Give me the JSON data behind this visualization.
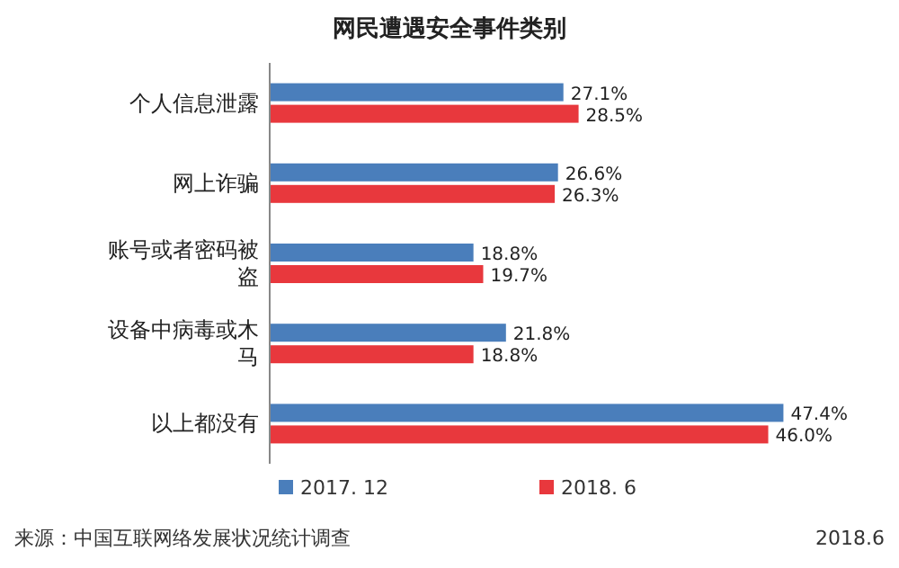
{
  "chart_data": {
    "type": "bar",
    "orientation": "horizontal",
    "title": "网民遭遇安全事件类别",
    "categories": [
      "个人信息泄露",
      "网上诈骗",
      "账号或者密码被盗",
      "设备中病毒或木马",
      "以上都没有"
    ],
    "series": [
      {
        "name": "2017. 12",
        "color": "#4a7ebb",
        "values": [
          27.1,
          26.6,
          18.8,
          21.8,
          47.4
        ],
        "value_labels": [
          "27.1%",
          "26.6%",
          "18.8%",
          "21.8%",
          "47.4%"
        ]
      },
      {
        "name": "2018. 6",
        "color": "#e8383d",
        "values": [
          28.5,
          26.3,
          19.7,
          18.8,
          46.0
        ],
        "value_labels": [
          "28.5%",
          "26.3%",
          "19.7%",
          "18.8%",
          "46.0%"
        ]
      }
    ],
    "legend": "bottom",
    "annotations": [
      "来源：中国互联网络发展状况统计调查",
      "2018.6"
    ]
  }
}
